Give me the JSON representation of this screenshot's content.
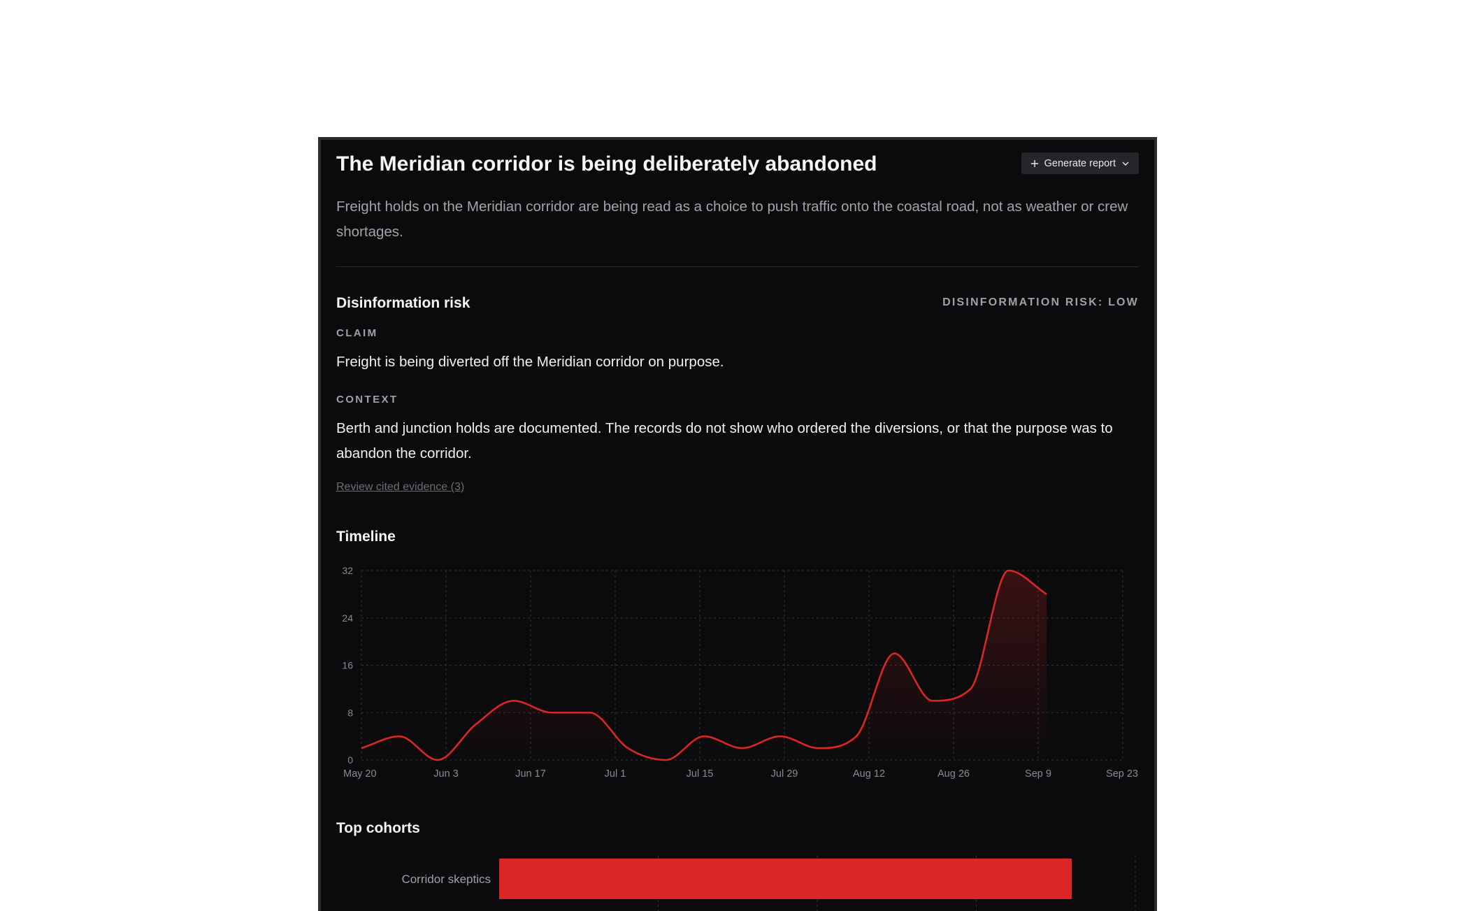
{
  "header": {
    "title": "The Meridian corridor is being deliberately abandoned",
    "subtitle": "Freight holds on the Meridian corridor are being read as a choice to push traffic onto the coastal road, not as weather or crew shortages.",
    "generate_button_label": "Generate report"
  },
  "risk": {
    "section_title": "Disinformation risk",
    "badge": "DISINFORMATION RISK: LOW",
    "claim_label": "CLAIM",
    "claim_text": "Freight is being diverted off the Meridian corridor on purpose.",
    "context_label": "CONTEXT",
    "context_text": "Berth and junction holds are documented. The records do not show who ordered the diversions, or that the purpose was to abandon the corridor.",
    "evidence_link": "Review cited evidence (3)"
  },
  "timeline": {
    "section_title": "Timeline",
    "accent_color": "#dc2626",
    "chart_data": {
      "type": "line",
      "x_tick_labels": [
        "May 20",
        "Jun 3",
        "Jun 17",
        "Jul 1",
        "Jul 15",
        "Jul 29",
        "Aug 12",
        "Aug 26",
        "Sep 9",
        "Sep 23"
      ],
      "y_ticks": [
        0,
        8,
        16,
        24,
        32
      ],
      "ylim": [
        0,
        32
      ],
      "xlim": [
        0,
        140
      ],
      "points": [
        {
          "day": 0,
          "value": 2
        },
        {
          "day": 7,
          "value": 4
        },
        {
          "day": 14,
          "value": 0
        },
        {
          "day": 21,
          "value": 6
        },
        {
          "day": 28,
          "value": 10
        },
        {
          "day": 35,
          "value": 8
        },
        {
          "day": 42,
          "value": 8
        },
        {
          "day": 49,
          "value": 2
        },
        {
          "day": 56,
          "value": 0
        },
        {
          "day": 63,
          "value": 4
        },
        {
          "day": 70,
          "value": 2
        },
        {
          "day": 77,
          "value": 4
        },
        {
          "day": 84,
          "value": 2
        },
        {
          "day": 91,
          "value": 4
        },
        {
          "day": 98,
          "value": 18
        },
        {
          "day": 105,
          "value": 10
        },
        {
          "day": 112,
          "value": 12
        },
        {
          "day": 119,
          "value": 32
        },
        {
          "day": 126,
          "value": 28
        }
      ]
    }
  },
  "cohorts": {
    "section_title": "Top cohorts",
    "bar_color": "#dc2626",
    "chart_data": {
      "type": "bar",
      "orientation": "horizontal",
      "categories": [
        "Corridor skeptics"
      ],
      "values": [
        0.9
      ],
      "xlim": [
        0,
        1
      ]
    }
  }
}
